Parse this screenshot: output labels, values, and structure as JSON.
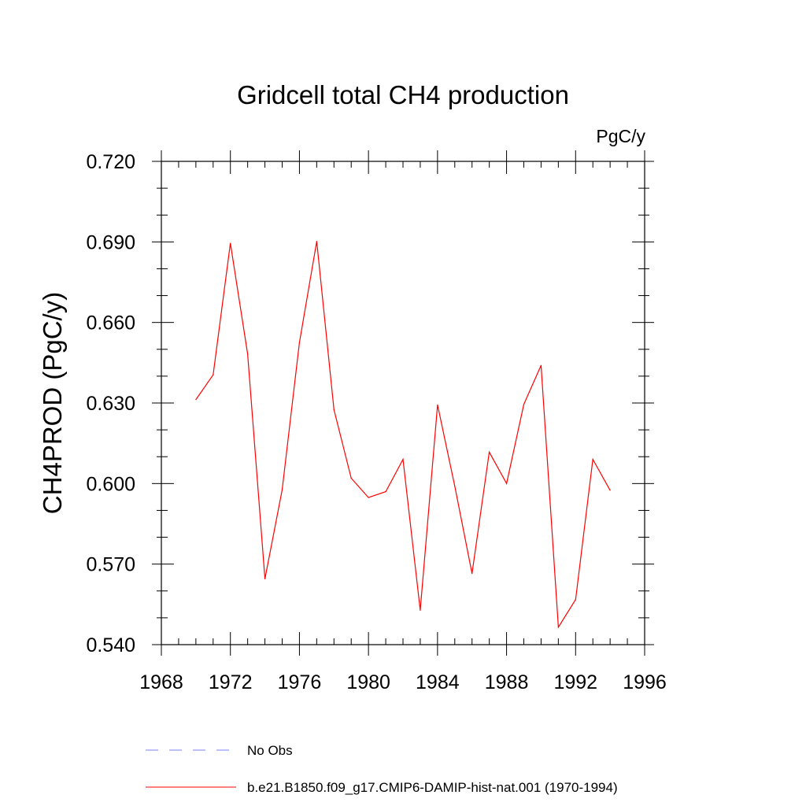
{
  "chart_data": {
    "type": "line",
    "title": "Gridcell total CH4 production",
    "units_label": "PgC/y",
    "ylabel": "CH4PROD  (PgC/y)",
    "xlabel": "",
    "xlim": [
      1968,
      1996
    ],
    "ylim": [
      0.54,
      0.72
    ],
    "x_ticks": [
      1968,
      1972,
      1976,
      1980,
      1984,
      1988,
      1992,
      1996
    ],
    "x_tick_labels": [
      "1968",
      "1972",
      "1976",
      "1980",
      "1984",
      "1988",
      "1992",
      "1996"
    ],
    "y_ticks": [
      0.54,
      0.57,
      0.6,
      0.63,
      0.66,
      0.69,
      0.72
    ],
    "y_tick_labels": [
      "0.540",
      "0.570",
      "0.600",
      "0.630",
      "0.660",
      "0.690",
      "0.720"
    ],
    "grid": false,
    "legend_position": "bottom",
    "series": [
      {
        "name": "b.e21.B1850.f09_g17.CMIP6-DAMIP-hist-nat.001 (1970-1994)",
        "color": "#ff0000",
        "style": "solid",
        "x": [
          1970,
          1971,
          1972,
          1973,
          1974,
          1975,
          1976,
          1977,
          1978,
          1979,
          1980,
          1981,
          1982,
          1983,
          1984,
          1985,
          1986,
          1987,
          1988,
          1989,
          1990,
          1991,
          1992,
          1993,
          1994
        ],
        "y": [
          0.6313,
          0.6405,
          0.6895,
          0.6483,
          0.5645,
          0.5977,
          0.6525,
          0.6902,
          0.6275,
          0.602,
          0.5948,
          0.597,
          0.609,
          0.5528,
          0.6293,
          0.599,
          0.5665,
          0.6117,
          0.6,
          0.6295,
          0.644,
          0.5465,
          0.5568,
          0.609,
          0.5975
        ]
      }
    ],
    "legend": [
      {
        "label": "No Obs",
        "color": "#7b7bff",
        "style": "dashed"
      },
      {
        "label": "b.e21.B1850.f09_g17.CMIP6-DAMIP-hist-nat.001 (1970-1994)",
        "color": "#ff0000",
        "style": "solid"
      }
    ]
  }
}
